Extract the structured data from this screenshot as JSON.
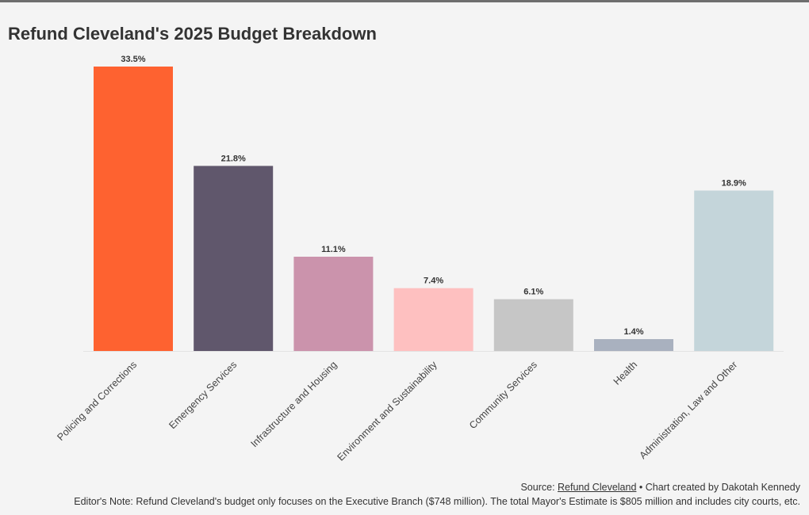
{
  "chart_data": {
    "type": "bar",
    "title": "Refund Cleveland's 2025 Budget Breakdown",
    "xlabel": "",
    "ylabel": "",
    "ylim": [
      0,
      33.5
    ],
    "grid": false,
    "legend": "none",
    "value_suffix": "%",
    "categories": [
      "Policing and Corrections",
      "Emergency Services",
      "Infrastructure and Housing",
      "Environment and Sustainability",
      "Community Services",
      "Health",
      "Administration, Law and Other"
    ],
    "values": [
      33.5,
      21.8,
      11.1,
      7.4,
      6.1,
      1.4,
      18.9
    ],
    "data_labels": [
      "33.5%",
      "21.8%",
      "11.1%",
      "7.4%",
      "6.1%",
      "1.4%",
      "18.9%"
    ],
    "colors": [
      "#fe6230",
      "#60576c",
      "#cb93ac",
      "#fec0c0",
      "#c6c6c6",
      "#a9b1bf",
      "#c4d5da"
    ]
  },
  "footer": {
    "source_prefix": "Source: ",
    "source_link": "Refund Cleveland",
    "source_suffix": " • Chart created by Dakotah Kennedy",
    "note": "Editor's Note: Refund Cleveland's budget only focuses on the Executive Branch ($748 million). The total Mayor's Estimate is $805 million and includes city courts, etc."
  }
}
